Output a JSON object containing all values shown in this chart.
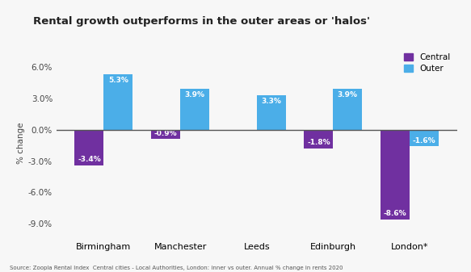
{
  "title": "Rental growth outperforms in the outer areas or 'halos'",
  "categories": [
    "Birmingham",
    "Manchester",
    "Leeds",
    "Edinburgh",
    "London*"
  ],
  "central_values": [
    -3.4,
    -0.9,
    0.0,
    -1.8,
    -8.6
  ],
  "outer_values": [
    5.3,
    3.9,
    3.3,
    3.9,
    -1.6
  ],
  "central_labels": [
    "-3.4%",
    "-0.9%",
    "",
    "-1.8%",
    "-8.6%"
  ],
  "outer_labels": [
    "5.3%",
    "3.9%",
    "3.3%",
    "3.9%",
    "-1.6%"
  ],
  "central_color": "#7030A0",
  "outer_color": "#4BAEE8",
  "ylabel": "% change",
  "ylim": [
    -10.5,
    8.0
  ],
  "yticks": [
    -9.0,
    -6.0,
    -3.0,
    0.0,
    3.0,
    6.0
  ],
  "ytick_labels": [
    "-9.0%",
    "-6.0%",
    "-3.0%",
    "0.0%",
    "3.0%",
    "6.0%"
  ],
  "legend_labels": [
    "Central",
    "Outer"
  ],
  "footnote": "Source: Zoopla Rental Index  Central cities - Local Authorities, London: inner vs outer. Annual % change in rents 2020",
  "background_color": "#f7f7f7",
  "bar_width": 0.38
}
